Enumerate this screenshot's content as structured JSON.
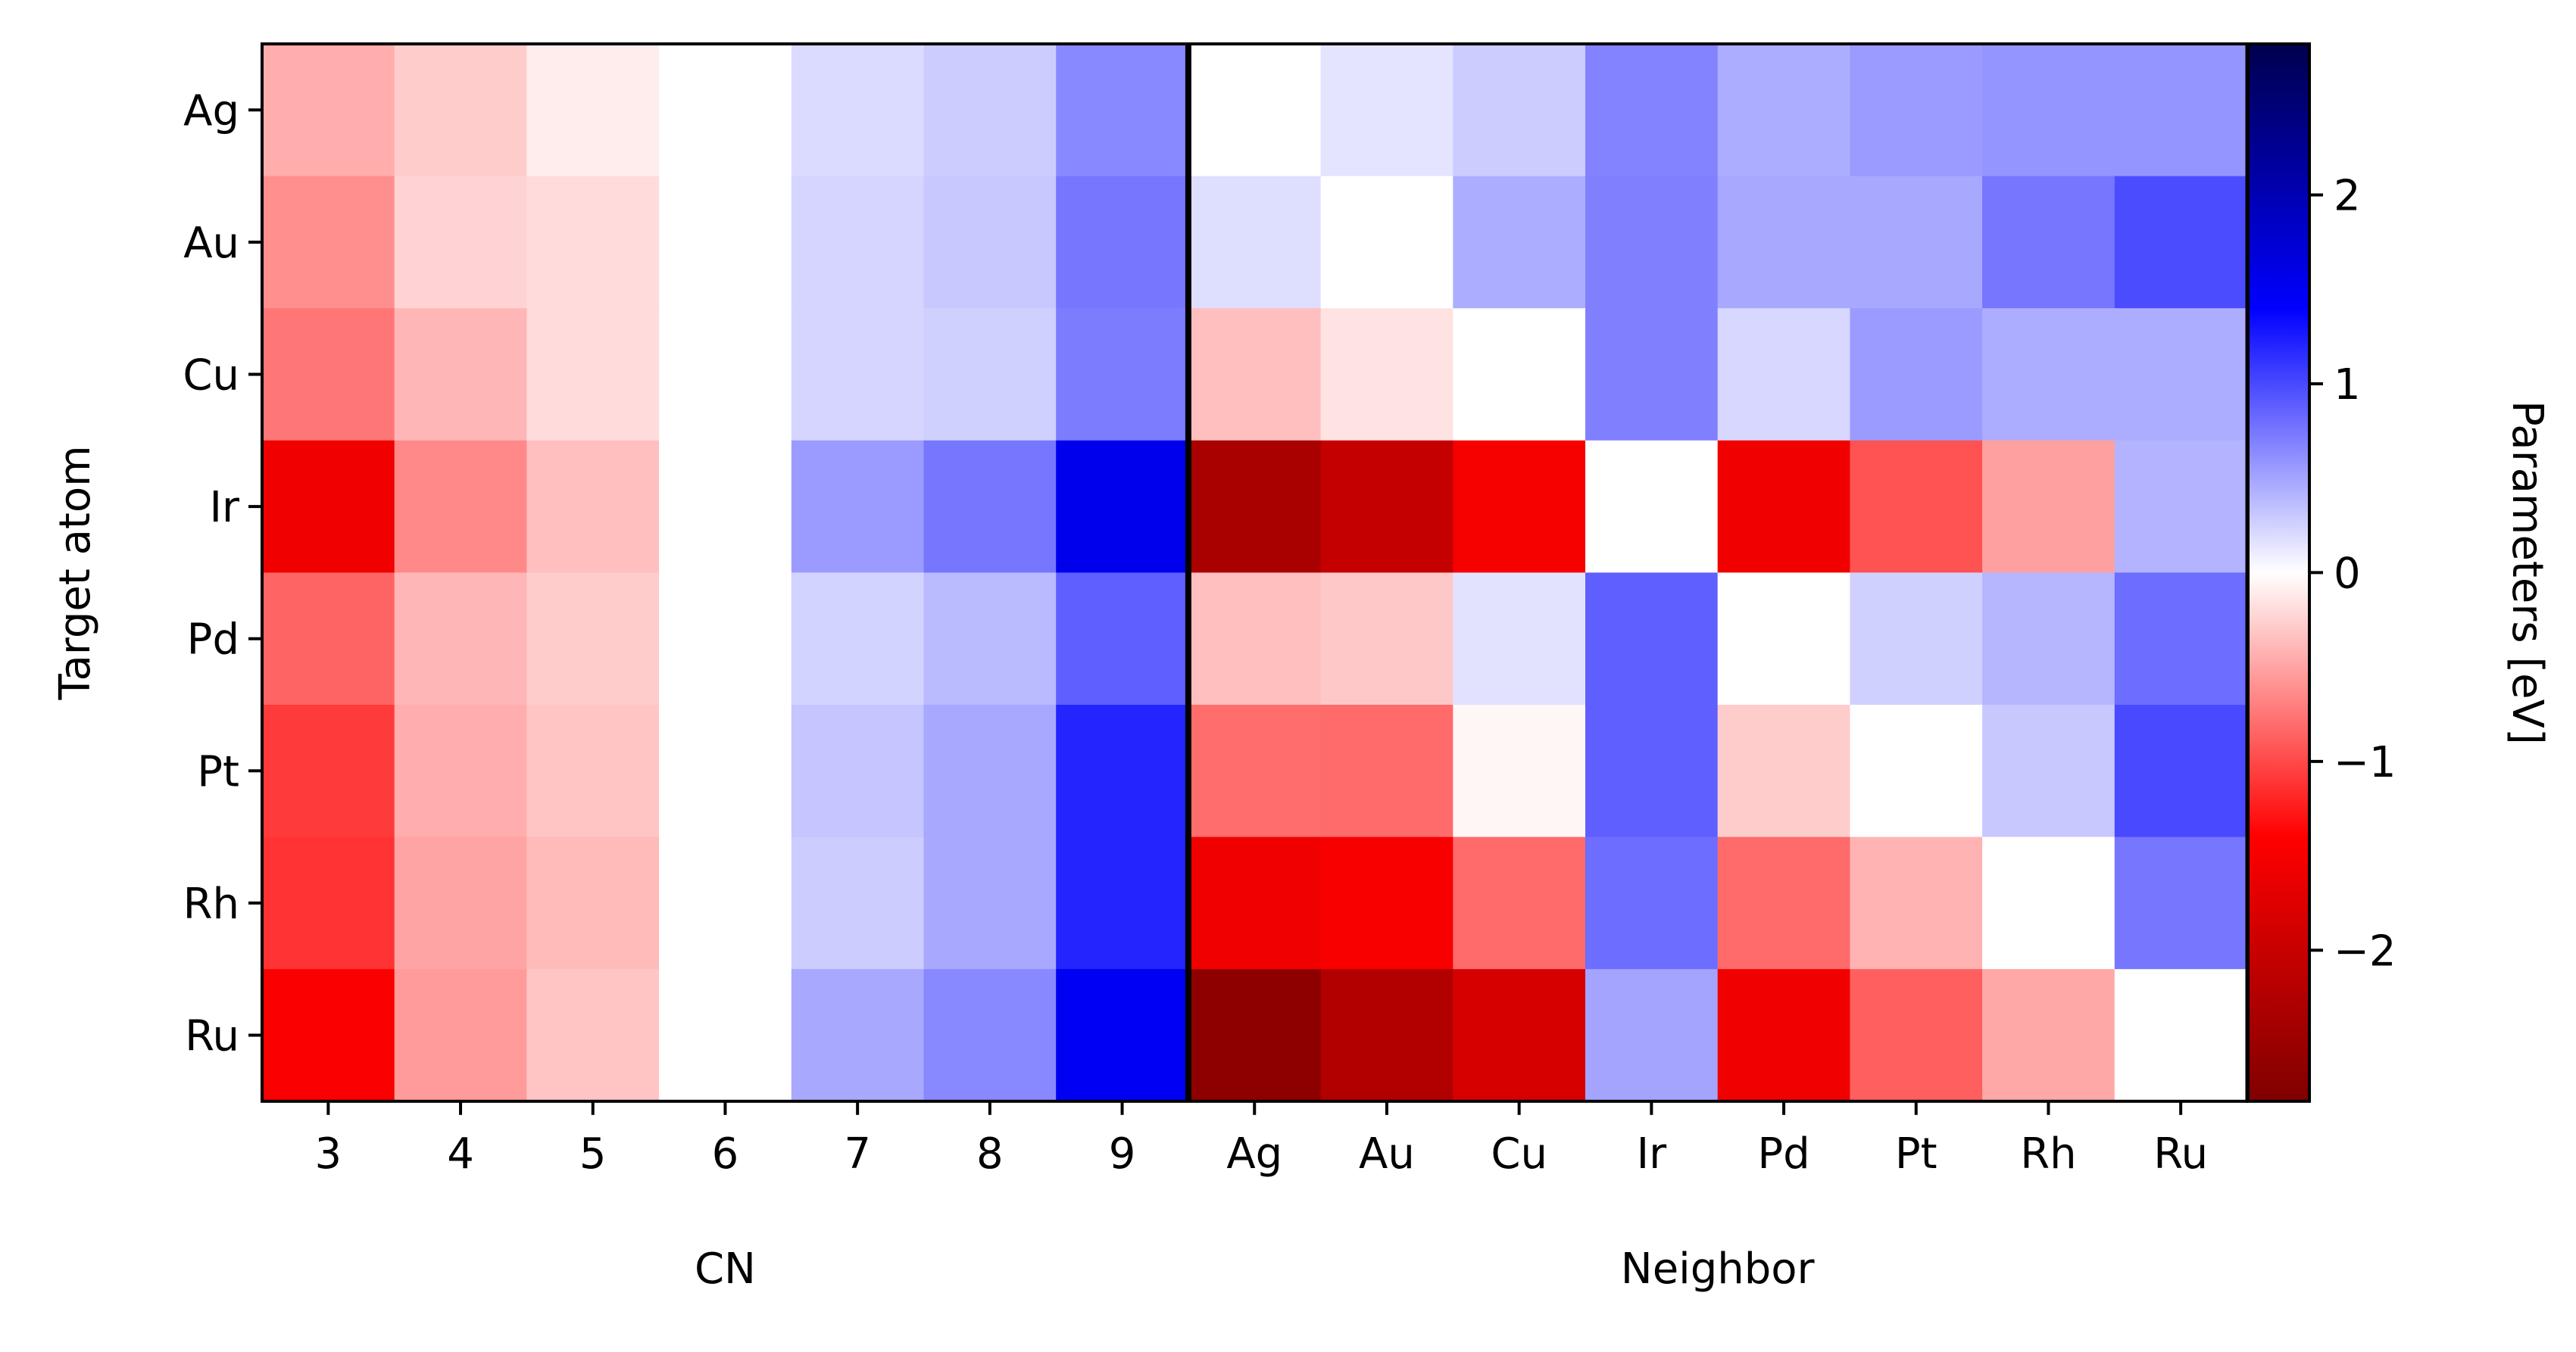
{
  "chart_data": {
    "type": "heatmap",
    "rows": [
      "Ag",
      "Au",
      "Cu",
      "Ir",
      "Pd",
      "Pt",
      "Rh",
      "Ru"
    ],
    "columns": [
      "3",
      "4",
      "5",
      "6",
      "7",
      "8",
      "9",
      "Ag",
      "Au",
      "Cu",
      "Ir",
      "Pd",
      "Pt",
      "Rh",
      "Ru"
    ],
    "column_groups": [
      {
        "label": "CN",
        "columns": [
          "3",
          "4",
          "5",
          "6",
          "7",
          "8",
          "9"
        ]
      },
      {
        "label": "Neighbor",
        "columns": [
          "Ag",
          "Au",
          "Cu",
          "Ir",
          "Pd",
          "Pt",
          "Rh",
          "Ru"
        ]
      }
    ],
    "values": [
      [
        -0.45,
        -0.28,
        -0.1,
        0.0,
        0.2,
        0.28,
        0.65,
        0.0,
        0.15,
        0.28,
        0.68,
        0.45,
        0.55,
        0.58,
        0.58
      ],
      [
        -0.62,
        -0.24,
        -0.2,
        0.0,
        0.23,
        0.3,
        0.75,
        0.18,
        0.0,
        0.45,
        0.7,
        0.48,
        0.48,
        0.75,
        0.98
      ],
      [
        -0.75,
        -0.4,
        -0.2,
        0.0,
        0.23,
        0.26,
        0.72,
        -0.35,
        -0.16,
        0.0,
        0.7,
        0.22,
        0.55,
        0.45,
        0.45
      ],
      [
        -1.55,
        -0.65,
        -0.35,
        0.0,
        0.55,
        0.75,
        1.55,
        -2.35,
        -2.05,
        -1.5,
        0.0,
        -1.55,
        -0.95,
        -0.52,
        0.42
      ],
      [
        -0.85,
        -0.4,
        -0.28,
        0.0,
        0.24,
        0.38,
        0.88,
        -0.35,
        -0.3,
        0.16,
        0.88,
        0.0,
        0.26,
        0.4,
        0.8
      ],
      [
        -1.08,
        -0.45,
        -0.32,
        0.0,
        0.32,
        0.48,
        1.2,
        -0.8,
        -0.82,
        -0.05,
        0.88,
        -0.28,
        0.0,
        0.3,
        1.0
      ],
      [
        -1.12,
        -0.5,
        -0.38,
        0.0,
        0.28,
        0.48,
        1.2,
        -1.55,
        -1.48,
        -0.82,
        0.8,
        -0.82,
        -0.42,
        0.0,
        0.75
      ],
      [
        -1.45,
        -0.55,
        -0.32,
        0.0,
        0.48,
        0.65,
        1.5,
        -2.65,
        -2.25,
        -1.85,
        0.5,
        -1.55,
        -0.88,
        -0.48,
        0.0
      ]
    ],
    "ylabel": "Target atom",
    "colorbar": {
      "label": "Parameters [eV]",
      "range": [
        -2.8,
        2.8
      ],
      "ticks": [
        -2,
        -1,
        0,
        1,
        2
      ],
      "tick_labels": [
        "−2",
        "−1",
        "0",
        "1",
        "2"
      ],
      "colormap": "seismic (reversed): dark red → red → white → blue → dark blue"
    },
    "grid": false
  }
}
